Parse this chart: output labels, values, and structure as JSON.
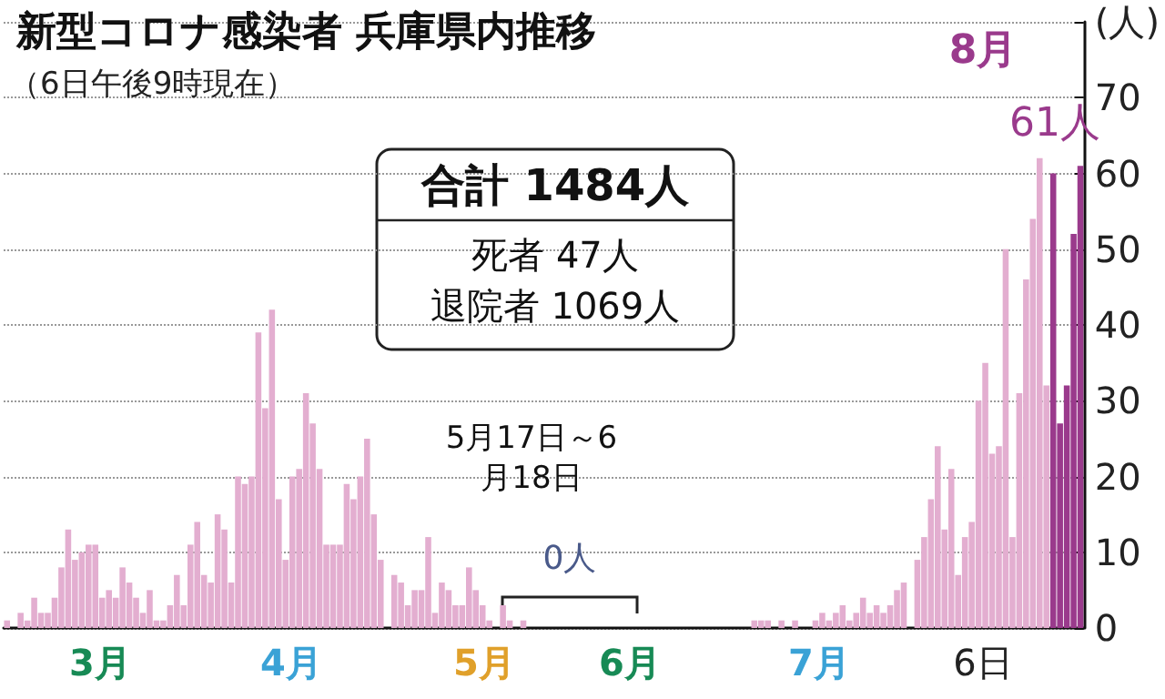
{
  "chart_data": {
    "type": "bar",
    "title": "新型コロナ感染者 兵庫県内推移",
    "subtitle": "（6日午後9時現在）",
    "categories": [
      null,
      null,
      null,
      null,
      null,
      null,
      null,
      null,
      null,
      null,
      null,
      null,
      null,
      null,
      null,
      null,
      null,
      null,
      null,
      null,
      null,
      null,
      null,
      null,
      null,
      null,
      null,
      null,
      null,
      null,
      null,
      null,
      null,
      null,
      null,
      null,
      null,
      null,
      null,
      null,
      null,
      null,
      null,
      null,
      null,
      null,
      null,
      null,
      null,
      null,
      null,
      null,
      null,
      null,
      null,
      null,
      null,
      null,
      null,
      null,
      null,
      null,
      null,
      null,
      null,
      null,
      null,
      null,
      null,
      null,
      null,
      null,
      null,
      null,
      null,
      null,
      null,
      null,
      null,
      null,
      null,
      null,
      null,
      null,
      null,
      null,
      null,
      null,
      null,
      null,
      null,
      null,
      null,
      null,
      null,
      null,
      null,
      null,
      null,
      null,
      null,
      null,
      null,
      null,
      null,
      null,
      null,
      null,
      null,
      null,
      null,
      null,
      null,
      null,
      null,
      null,
      null,
      null,
      null,
      null,
      null,
      null,
      null,
      null,
      null,
      null,
      null,
      null,
      null,
      null,
      null,
      null,
      null,
      null,
      null,
      null,
      null,
      null,
      null,
      null,
      null,
      null,
      null,
      null,
      null,
      null,
      null,
      null,
      null,
      null,
      null,
      null,
      null,
      null,
      null,
      null,
      null,
      null,
      null
    ],
    "values": [
      1,
      0,
      2,
      1,
      4,
      2,
      2,
      4,
      8,
      13,
      9,
      10,
      11,
      11,
      4,
      5,
      4,
      8,
      6,
      4,
      2,
      5,
      1,
      1,
      3,
      7,
      3,
      11,
      14,
      7,
      6,
      15,
      13,
      6,
      20,
      19,
      20,
      39,
      29,
      42,
      17,
      9,
      20,
      21,
      31,
      27,
      21,
      11,
      11,
      11,
      19,
      17,
      20,
      25,
      15,
      9,
      0,
      7,
      6,
      3,
      5,
      5,
      12,
      2,
      6,
      5,
      3,
      3,
      8,
      5,
      3,
      1,
      0,
      3,
      1,
      0,
      1,
      0,
      0,
      0,
      0,
      0,
      0,
      0,
      0,
      0,
      0,
      0,
      0,
      0,
      0,
      0,
      0,
      0,
      0,
      0,
      0,
      0,
      0,
      0,
      0,
      0,
      0,
      0,
      0,
      0,
      0,
      0,
      0,
      0,
      1,
      1,
      1,
      0,
      1,
      0,
      1,
      0,
      0,
      1,
      2,
      1,
      2,
      3,
      1,
      2,
      4,
      2,
      3,
      2,
      3,
      5,
      6,
      0,
      9,
      12,
      17,
      24,
      13,
      21,
      7,
      12,
      14,
      30,
      35,
      23,
      24,
      50,
      12,
      31,
      46,
      54,
      62,
      32,
      60,
      27,
      32,
      52,
      61
    ],
    "colors": [
      "#e3aed0",
      "#e3aed0",
      "#e3aed0",
      "#e3aed0",
      "#e3aed0",
      "#e3aed0",
      "#e3aed0",
      "#e3aed0",
      "#e3aed0",
      "#e3aed0",
      "#e3aed0",
      "#e3aed0",
      "#e3aed0",
      "#e3aed0",
      "#e3aed0",
      "#e3aed0",
      "#e3aed0",
      "#e3aed0",
      "#e3aed0",
      "#e3aed0",
      "#e3aed0",
      "#e3aed0",
      "#e3aed0",
      "#e3aed0",
      "#e3aed0",
      "#e3aed0",
      "#e3aed0",
      "#e3aed0",
      "#e3aed0",
      "#e3aed0",
      "#e3aed0",
      "#e3aed0",
      "#e3aed0",
      "#e3aed0",
      "#e3aed0",
      "#e3aed0",
      "#e3aed0",
      "#e3aed0",
      "#e3aed0",
      "#e3aed0",
      "#e3aed0",
      "#e3aed0",
      "#e3aed0",
      "#e3aed0",
      "#e3aed0",
      "#e3aed0",
      "#e3aed0",
      "#e3aed0",
      "#e3aed0",
      "#e3aed0",
      "#e3aed0",
      "#e3aed0",
      "#e3aed0",
      "#e3aed0",
      "#e3aed0",
      "#e3aed0",
      "#e3aed0",
      "#e3aed0",
      "#e3aed0",
      "#e3aed0",
      "#e3aed0",
      "#e3aed0",
      "#e3aed0",
      "#e3aed0",
      "#e3aed0",
      "#e3aed0",
      "#e3aed0",
      "#e3aed0",
      "#e3aed0",
      "#e3aed0",
      "#e3aed0",
      "#e3aed0",
      "#e3aed0",
      "#e3aed0",
      "#e3aed0",
      "#e3aed0",
      "#e3aed0",
      "#e3aed0",
      "#e3aed0",
      "#e3aed0",
      "#e3aed0",
      "#e3aed0",
      "#e3aed0",
      "#e3aed0",
      "#e3aed0",
      "#e3aed0",
      "#e3aed0",
      "#e3aed0",
      "#e3aed0",
      "#e3aed0",
      "#e3aed0",
      "#e3aed0",
      "#e3aed0",
      "#e3aed0",
      "#e3aed0",
      "#e3aed0",
      "#e3aed0",
      "#e3aed0",
      "#e3aed0",
      "#e3aed0",
      "#e3aed0",
      "#e3aed0",
      "#e3aed0",
      "#e3aed0",
      "#e3aed0",
      "#e3aed0",
      "#e3aed0",
      "#e3aed0",
      "#e3aed0",
      "#e3aed0",
      "#e3aed0",
      "#e3aed0",
      "#e3aed0",
      "#e3aed0",
      "#e3aed0",
      "#e3aed0",
      "#e3aed0",
      "#e3aed0",
      "#e3aed0",
      "#e3aed0",
      "#e3aed0",
      "#e3aed0",
      "#e3aed0",
      "#e3aed0",
      "#e3aed0",
      "#e3aed0",
      "#e3aed0",
      "#e3aed0",
      "#e3aed0",
      "#e3aed0",
      "#e3aed0",
      "#e3aed0",
      "#e3aed0",
      "#e3aed0",
      "#e3aed0",
      "#e3aed0",
      "#e3aed0",
      "#e3aed0",
      "#e3aed0",
      "#e3aed0",
      "#e3aed0",
      "#e3aed0",
      "#e3aed0",
      "#e3aed0",
      "#e3aed0",
      "#e3aed0",
      "#e3aed0",
      "#e3aed0",
      "#e3aed0",
      "#e3aed0",
      "#e3aed0",
      "#e3aed0",
      "#e3aed0",
      "#e3aed0",
      "#9a3a8c",
      "#9a3a8c",
      "#9a3a8c",
      "#9a3a8c",
      "#9a3a8c"
    ],
    "value_labels": [
      null,
      null,
      null,
      null,
      null,
      null,
      null,
      null,
      null,
      null,
      null,
      null,
      null,
      null,
      null,
      null,
      null,
      null,
      null,
      null,
      null,
      null,
      null,
      null,
      null,
      null,
      null,
      null,
      null,
      null,
      null,
      null,
      null,
      null,
      null,
      null,
      null,
      null,
      null,
      null,
      null,
      null,
      null,
      null,
      null,
      null,
      null,
      null,
      null,
      null,
      null,
      null,
      null,
      null,
      null,
      null,
      null,
      null,
      null,
      null,
      null,
      null,
      null,
      null,
      null,
      null,
      null,
      null,
      null,
      null,
      null,
      null,
      null,
      null,
      null,
      null,
      null,
      null,
      null,
      null,
      null,
      null,
      null,
      null,
      null,
      null,
      null,
      null,
      null,
      null,
      null,
      null,
      null,
      null,
      null,
      null,
      null,
      null,
      null,
      null,
      null,
      null,
      null,
      null,
      null,
      null,
      null,
      null,
      null,
      null,
      null,
      null,
      null,
      null,
      null,
      null,
      null,
      null,
      null,
      null,
      null,
      null,
      null,
      null,
      null,
      null,
      null,
      null,
      null,
      null,
      null,
      null,
      null,
      null,
      null,
      null,
      null,
      null,
      null,
      null,
      null,
      null,
      null,
      null,
      null,
      null,
      null,
      null,
      null,
      null,
      null,
      null,
      null,
      null,
      null,
      null,
      null,
      null,
      "61人"
    ],
    "ylim": [
      0,
      80
    ],
    "yticks": [
      0,
      10,
      20,
      30,
      40,
      50,
      60,
      70,
      {
        "value": 80,
        "label": "(人)"
      }
    ],
    "grid": "y",
    "annotations": [
      "8月",
      "3月",
      "4月",
      "5月",
      "6月",
      "7月",
      "6日",
      "合計 1484人",
      "死者 47人",
      "退院者 1069人",
      "5月17日～6月18日",
      "0人"
    ]
  }
}
